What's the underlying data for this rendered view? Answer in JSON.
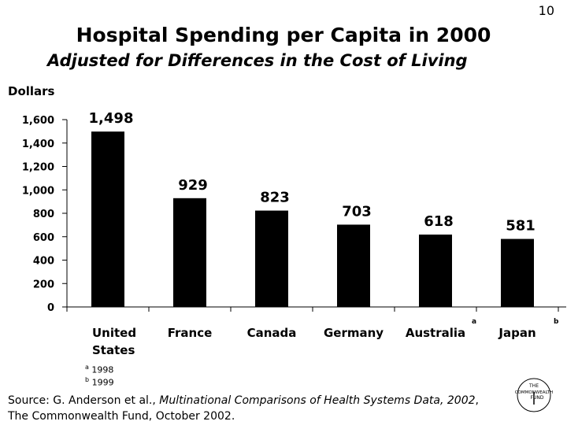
{
  "page_number": "10",
  "header": {
    "title": "Hospital Spending per Capita in 2000",
    "subtitle": "Adjusted for Differences in the Cost of Living"
  },
  "chart_data": {
    "type": "bar",
    "title": "Hospital Spending per Capita in 2000",
    "subtitle": "Adjusted for Differences in the Cost of Living",
    "ylabel": "Dollars",
    "xlabel": "",
    "ylim": [
      0,
      1600
    ],
    "yticks": [
      0,
      200,
      400,
      600,
      800,
      1000,
      1200,
      1400,
      1600
    ],
    "ytick_labels": [
      "0",
      "200",
      "400",
      "600",
      "800",
      "1,000",
      "1,200",
      "1,400",
      "1,600"
    ],
    "categories": [
      {
        "lines": [
          "United",
          "States"
        ],
        "note": ""
      },
      {
        "lines": [
          "France"
        ],
        "note": ""
      },
      {
        "lines": [
          "Canada"
        ],
        "note": ""
      },
      {
        "lines": [
          "Germany"
        ],
        "note": ""
      },
      {
        "lines": [
          "Australia"
        ],
        "note": "a"
      },
      {
        "lines": [
          "Japan"
        ],
        "note": "b"
      }
    ],
    "values": [
      1498,
      929,
      823,
      703,
      618,
      581
    ],
    "value_labels": [
      "1,498",
      "929",
      "823",
      "703",
      "618",
      "581"
    ],
    "bar_color": "#000000",
    "grid": false
  },
  "footnotes": [
    {
      "mark": "a",
      "text": " 1998"
    },
    {
      "mark": "b",
      "text": " 1999"
    }
  ],
  "source": {
    "prefix": "Source: G. Anderson et al., ",
    "title": "Multinational Comparisons of Health Systems Data, 2002",
    "suffix": ",",
    "line2": "The Commonwealth Fund, October 2002."
  },
  "logo": {
    "line1": "THE",
    "line2": "COMMONWEALTH",
    "line3": "FUND"
  }
}
